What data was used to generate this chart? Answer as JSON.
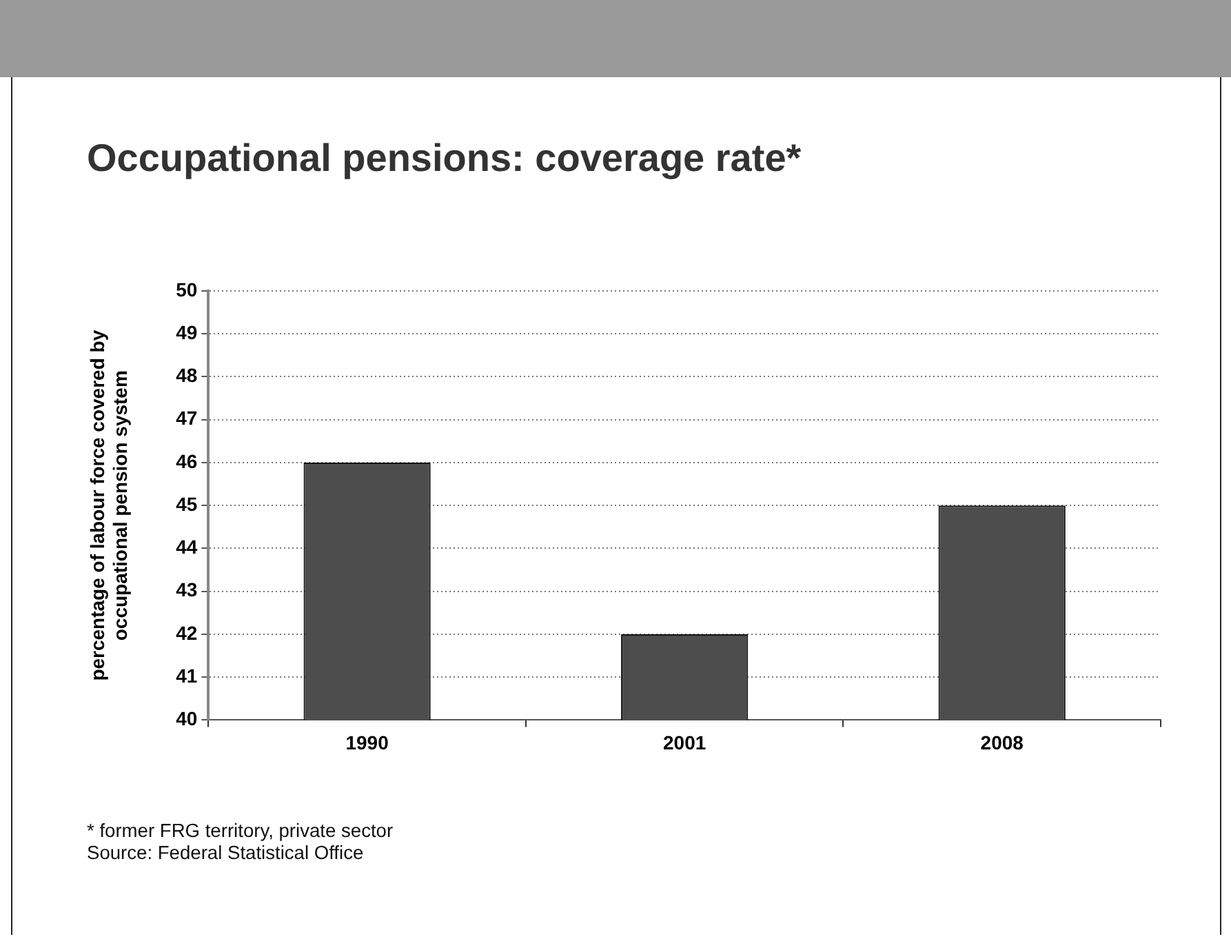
{
  "chart_data": {
    "type": "bar",
    "title": "Occupational pensions: coverage rate*",
    "ylabel": "percentage of labour force covered by occupational pension system",
    "categories": [
      "1990",
      "2001",
      "2008"
    ],
    "values": [
      46,
      42,
      45
    ],
    "color": "#4d4d4d",
    "ylim": [
      40,
      50
    ],
    "yticks": [
      40,
      41,
      42,
      43,
      44,
      45,
      46,
      47,
      48,
      49,
      50
    ],
    "grid": "y",
    "legend": false,
    "annotations": [
      "* former FRG territory, private sector",
      "Source: Federal Statistical Office"
    ]
  }
}
